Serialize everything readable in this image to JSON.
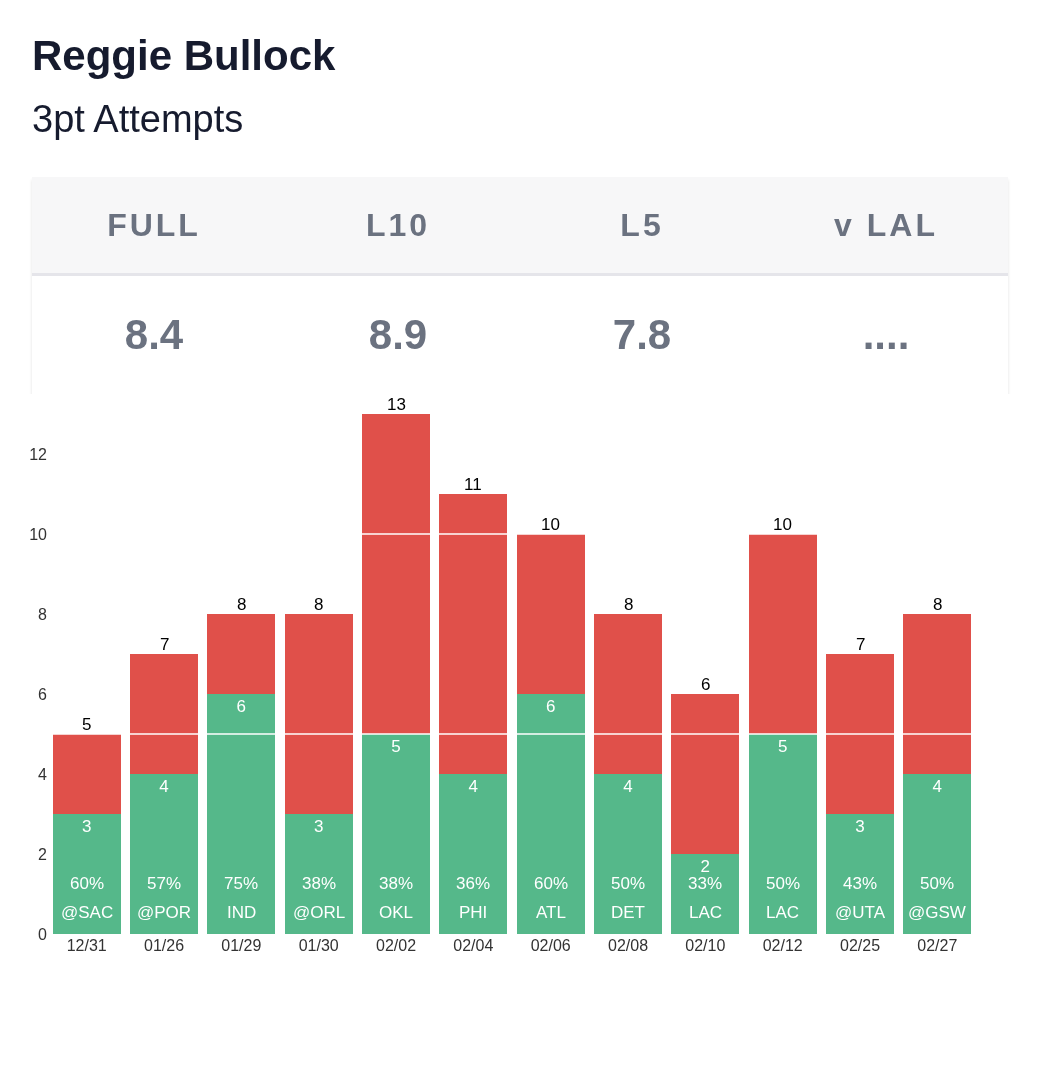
{
  "chart_data": [
    {
      "type": "other",
      "title": "Reggie Bullock",
      "subtitle": "3pt Attempts",
      "categories": [
        "FULL",
        "L10",
        "L5",
        "v LAL"
      ],
      "value_labels": [
        "8.4",
        "8.9",
        "7.8",
        "...."
      ]
    },
    {
      "type": "bar",
      "stacked": true,
      "categories": [
        "12/31",
        "01/26",
        "01/29",
        "01/30",
        "02/02",
        "02/04",
        "02/06",
        "02/08",
        "02/10",
        "02/12",
        "02/25",
        "02/27"
      ],
      "series": [
        {
          "color": "#55b88a",
          "values": [
            3,
            4,
            6,
            3,
            5,
            4,
            6,
            4,
            2,
            5,
            3,
            4
          ],
          "value_labels": [
            "3",
            "4",
            "6",
            "3",
            "5",
            "4",
            "6",
            "4",
            "2",
            "5",
            "3",
            "4"
          ]
        },
        {
          "color": "#e0504a",
          "values": [
            2,
            3,
            2,
            5,
            8,
            7,
            4,
            4,
            4,
            5,
            4,
            4
          ]
        }
      ],
      "totals": [
        "5",
        "7",
        "8",
        "8",
        "13",
        "11",
        "10",
        "8",
        "6",
        "10",
        "7",
        "8"
      ],
      "ylim": [
        0,
        13
      ],
      "yticks": [
        0,
        2,
        4,
        6,
        8,
        10,
        12
      ],
      "grid": false,
      "ref_lines": [
        {
          "axis": "y",
          "value": 5,
          "color": "#ffffff"
        },
        {
          "axis": "y",
          "value": 10,
          "color": "#ffffff"
        }
      ],
      "annotations": [
        "60%",
        "57%",
        "75%",
        "38%",
        "38%",
        "36%",
        "60%",
        "50%",
        "33%",
        "50%",
        "43%",
        "50%",
        "@SAC",
        "@POR",
        "IND",
        "@ORL",
        "OKL",
        "PHI",
        "ATL",
        "DET",
        "LAC",
        "LAC",
        "@UTA",
        "@GSW"
      ]
    }
  ]
}
